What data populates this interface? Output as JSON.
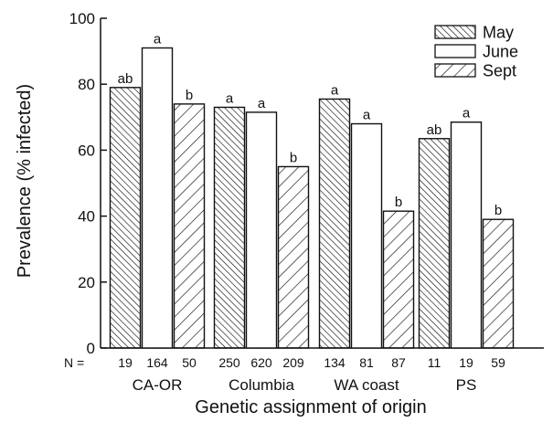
{
  "chart_data": {
    "type": "bar",
    "xlabel": "Genetic assignment of origin",
    "ylabel": "Prevalence (% infected)",
    "ylim": [
      0,
      100
    ],
    "yticks": [
      0,
      20,
      40,
      60,
      80,
      100
    ],
    "categories": [
      "CA-OR",
      "Columbia",
      "WA coast",
      "PS"
    ],
    "series": [
      {
        "name": "May",
        "pattern": "dense-backslash",
        "values": [
          79,
          73,
          75.5,
          63.5
        ],
        "letters": [
          "ab",
          "a",
          "a",
          "ab"
        ],
        "n": [
          "19",
          "250",
          "134",
          "11"
        ]
      },
      {
        "name": "June",
        "pattern": "none",
        "values": [
          91,
          71.5,
          68,
          68.5
        ],
        "letters": [
          "a",
          "a",
          "a",
          "a"
        ],
        "n": [
          "164",
          "620",
          "81",
          "19"
        ]
      },
      {
        "name": "Sept",
        "pattern": "slash",
        "values": [
          74,
          55,
          41.5,
          39
        ],
        "letters": [
          "b",
          "b",
          "b",
          "b"
        ],
        "n": [
          "50",
          "209",
          "87",
          "59"
        ]
      }
    ],
    "n_prefix": "N =",
    "legend_position": "top-right",
    "grid": false
  },
  "colors": {
    "ink": "#111111",
    "fill": "#ffffff"
  }
}
